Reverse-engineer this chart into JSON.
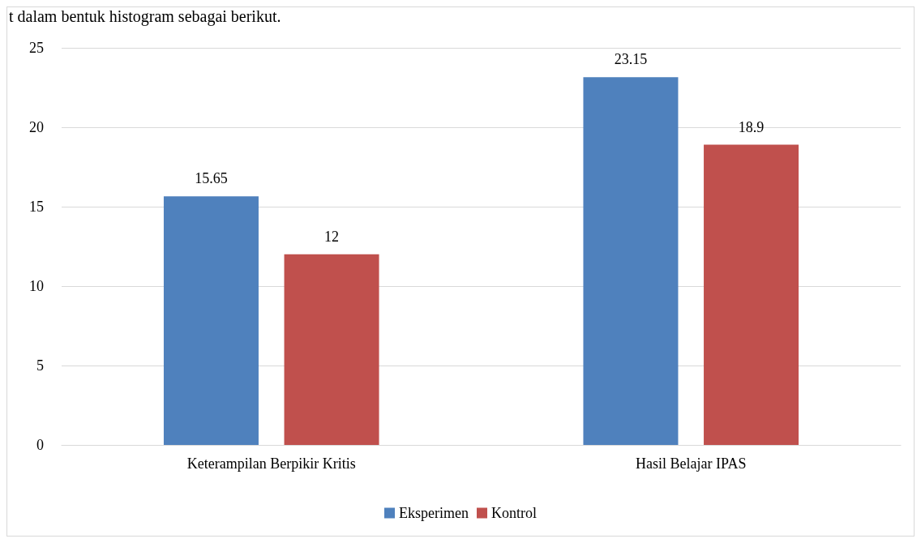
{
  "chart_data": {
    "type": "bar",
    "categories": [
      "Keterampilan Berpikir Kritis",
      "Hasil Belajar IPAS"
    ],
    "series": [
      {
        "name": "Eksperimen",
        "color": "#4f81bd",
        "values": [
          15.65,
          23.15
        ]
      },
      {
        "name": "Kontrol",
        "color": "#c0504d",
        "values": [
          12,
          18.9
        ]
      }
    ],
    "ylim": [
      0,
      25
    ],
    "yticks": [
      0,
      5,
      10,
      15,
      20,
      25
    ],
    "grid": "y",
    "legend": "bottom",
    "data_labels": true,
    "annotations": [
      "t dalam bentuk histogram sebagai berikut."
    ]
  }
}
